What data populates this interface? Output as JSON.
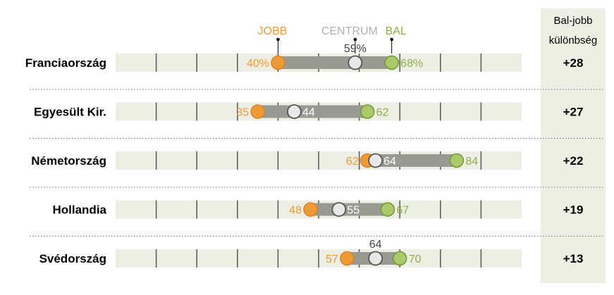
{
  "chart_data": {
    "type": "dot-range",
    "header": {
      "line1": "Bal-jobb",
      "line2": "különbség"
    },
    "legend": [
      {
        "key": "right",
        "label": "JOBB",
        "color": "#EE9B37"
      },
      {
        "key": "center",
        "label": "CENTRUM",
        "color": "#C0C0C0"
      },
      {
        "key": "left",
        "label": "BAL",
        "color": "#8CB045"
      }
    ],
    "x_range": [
      0,
      100
    ],
    "rows": [
      {
        "country": "Franciaország",
        "right": 40,
        "center": 59,
        "left": 68,
        "right_label": "40%",
        "center_label": "59%",
        "left_label": "68%",
        "diff": "+28"
      },
      {
        "country": "Egyesült Kir.",
        "right": 35,
        "center": 44,
        "left": 62,
        "right_label": "35",
        "center_label": "44",
        "left_label": "62",
        "diff": "+27"
      },
      {
        "country": "Németország",
        "right": 62,
        "center": 64,
        "left": 84,
        "right_label": "62",
        "center_label": "64",
        "left_label": "84",
        "diff": "+22"
      },
      {
        "country": "Hollandia",
        "right": 48,
        "center": 55,
        "left": 67,
        "right_label": "48",
        "center_label": "55",
        "left_label": "67",
        "diff": "+19"
      },
      {
        "country": "Svédország",
        "right": 57,
        "center": 64,
        "left": 70,
        "right_label": "57",
        "center_label": "64",
        "left_label": "70",
        "diff": "+13"
      }
    ]
  },
  "colors": {
    "right": "#EE9B37",
    "right_stroke": "#D9822A",
    "center": "#E8E8E8",
    "center_stroke": "#555555",
    "left": "#A9C96A",
    "left_stroke": "#6F9A30",
    "track": "#EEEFE4",
    "range": "#9A9A94",
    "panel": "#EEEFE4"
  }
}
